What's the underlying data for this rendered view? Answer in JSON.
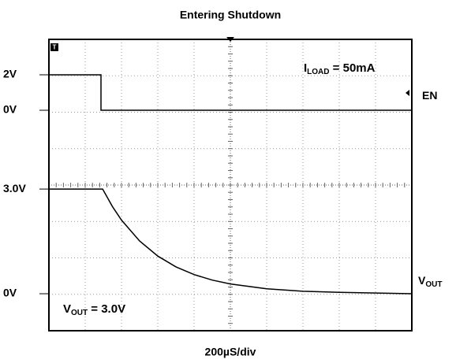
{
  "chart_data": {
    "type": "line",
    "title": "Entering Shutdown",
    "x_label": "200µS/div",
    "xlim": [
      0,
      2000
    ],
    "annotations": [
      {
        "text": "I",
        "sub": "LOAD",
        "rest": " = 50mA"
      },
      {
        "text": "V",
        "sub": "OUT",
        "rest": " = 3.0V"
      }
    ],
    "series": [
      {
        "name": "EN",
        "color": "#000000",
        "x": [
          0,
          287,
          287,
          2000
        ],
        "values": [
          2,
          2,
          0,
          0
        ],
        "ylim": [
          -12.44,
          4
        ],
        "yticks": [
          {
            "value": 2,
            "label": "2V"
          },
          {
            "value": 0,
            "label": "0V"
          }
        ]
      },
      {
        "name": "V",
        "name_sub": "OUT",
        "color": "#000000",
        "x": [
          0,
          296,
          350,
          400,
          500,
          600,
          700,
          800,
          900,
          1000,
          1200,
          1400,
          1600,
          1800,
          2000
        ],
        "values": [
          3,
          3,
          2.5,
          2.11,
          1.51,
          1.08,
          0.77,
          0.55,
          0.39,
          0.28,
          0.14,
          0.07,
          0.04,
          0.02,
          0
        ],
        "ylim": [
          -1.06,
          7.29
        ],
        "yticks": [
          {
            "value": 3,
            "label": "3.0V"
          },
          {
            "value": 0,
            "label": "0V"
          }
        ]
      }
    ]
  }
}
